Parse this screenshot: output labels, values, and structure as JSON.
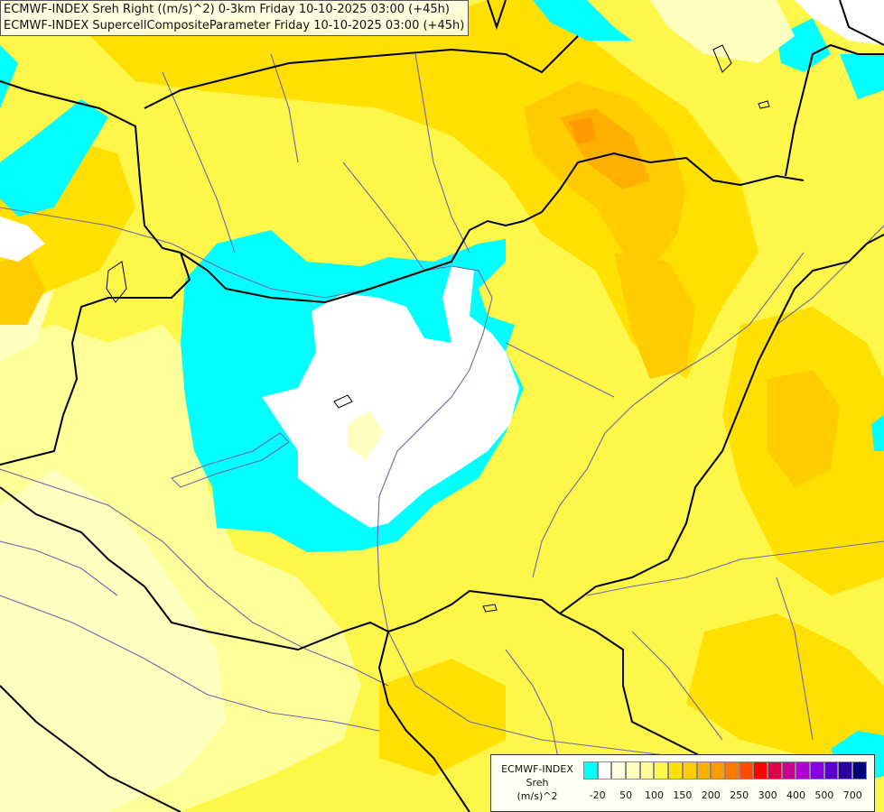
{
  "title": {
    "line1": "ECMWF-INDEX Sreh Right ((m/s)^2) 0-3km Friday 10-10-2025 03:00 (+45h)",
    "line2": "ECMWF-INDEX SupercellCompositeParameter Friday 10-10-2025 03:00 (+45h)"
  },
  "legend": {
    "source": "ECMWF-INDEX",
    "variable": "Sreh",
    "unit": "(m/s)^2",
    "colors": [
      "#00ffff",
      "#ffffff",
      "#ffffe0",
      "#ffffc0",
      "#ffff9a",
      "#fff64a",
      "#ffe000",
      "#ffcc00",
      "#ffb000",
      "#ff9a00",
      "#ff7800",
      "#ff4a00",
      "#ff0000",
      "#e0004a",
      "#cc0090",
      "#b000cc",
      "#8800e0",
      "#5a00cc",
      "#2a00a0",
      "#000078"
    ],
    "ticks": [
      "-20",
      "50",
      "100",
      "150",
      "200",
      "250",
      "300",
      "400",
      "500",
      "700"
    ]
  },
  "colors": {
    "cyan": "#00ffff",
    "white": "#ffffff",
    "lightYellow": "#ffff9a",
    "paleYellow": "#ffffc0",
    "yellow": "#fff64a",
    "gold": "#ffe000",
    "amber": "#ffcc00",
    "orange": "#ffb000",
    "darkOrange": "#ff9a00",
    "border": "#000000",
    "river": "#6a6aaa"
  }
}
